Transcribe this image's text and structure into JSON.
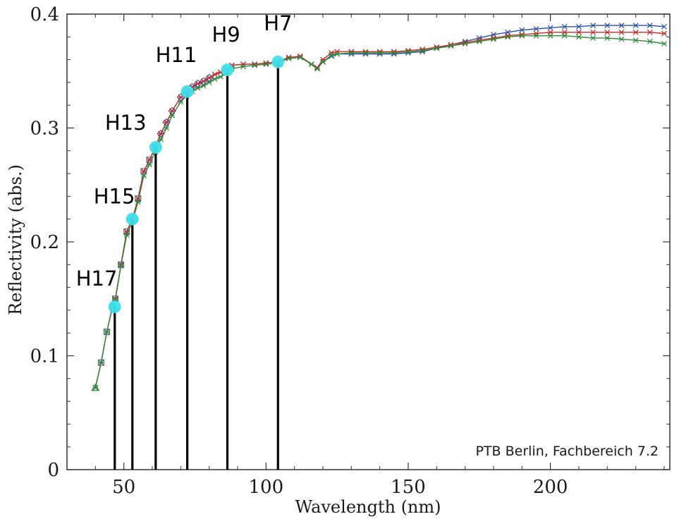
{
  "chart_data": {
    "type": "line",
    "xlabel": "Wavelength (nm)",
    "ylabel": "Reflectivity (abs.)",
    "xlim": [
      30,
      242
    ],
    "ylim": [
      0,
      0.4
    ],
    "x_ticks": [
      50,
      100,
      150,
      200
    ],
    "y_ticks": [
      0,
      0.1,
      0.2,
      0.3,
      0.4
    ],
    "y_tick_labels": [
      "0",
      "0.1",
      "0.2",
      "0.3",
      "0.4"
    ],
    "grid": false,
    "annotation": "PTB Berlin, Fachbereich 7.2",
    "series": [
      {
        "color": "#2a4fb0",
        "marker": "x",
        "points": [
          [
            40,
            0.072
          ],
          [
            42,
            0.094
          ],
          [
            44,
            0.121
          ],
          [
            46,
            0.143
          ],
          [
            47,
            0.15
          ],
          [
            49,
            0.18
          ],
          [
            51,
            0.209
          ],
          [
            53,
            0.22
          ],
          [
            55,
            0.238
          ],
          [
            57,
            0.262
          ],
          [
            59,
            0.272
          ],
          [
            61,
            0.283
          ],
          [
            63,
            0.295
          ],
          [
            65,
            0.305
          ],
          [
            67,
            0.315
          ],
          [
            70,
            0.327
          ],
          [
            72,
            0.332
          ],
          [
            74,
            0.336
          ],
          [
            76,
            0.339
          ],
          [
            78,
            0.341
          ],
          [
            80,
            0.344
          ],
          [
            82,
            0.347
          ],
          [
            84,
            0.349
          ],
          [
            86,
            0.351
          ],
          [
            88,
            0.355
          ],
          [
            92,
            0.356
          ],
          [
            96,
            0.356
          ],
          [
            100,
            0.357
          ],
          [
            104,
            0.358
          ],
          [
            108,
            0.362
          ],
          [
            112,
            0.363
          ],
          [
            116,
            0.356
          ],
          [
            118,
            0.353
          ],
          [
            120,
            0.358
          ],
          [
            123,
            0.363
          ],
          [
            125,
            0.365
          ],
          [
            130,
            0.365
          ],
          [
            135,
            0.365
          ],
          [
            140,
            0.365
          ],
          [
            145,
            0.365
          ],
          [
            150,
            0.366
          ],
          [
            155,
            0.367
          ],
          [
            160,
            0.37
          ],
          [
            165,
            0.373
          ],
          [
            170,
            0.376
          ],
          [
            175,
            0.379
          ],
          [
            180,
            0.382
          ],
          [
            185,
            0.384
          ],
          [
            190,
            0.386
          ],
          [
            195,
            0.387
          ],
          [
            200,
            0.388
          ],
          [
            205,
            0.389
          ],
          [
            210,
            0.389
          ],
          [
            215,
            0.39
          ],
          [
            220,
            0.39
          ],
          [
            225,
            0.39
          ],
          [
            230,
            0.39
          ],
          [
            235,
            0.39
          ],
          [
            240,
            0.389
          ]
        ]
      },
      {
        "color": "#cc2a2a",
        "marker": "star",
        "points": [
          [
            40,
            0.072
          ],
          [
            42,
            0.094
          ],
          [
            44,
            0.121
          ],
          [
            46,
            0.143
          ],
          [
            47,
            0.15
          ],
          [
            49,
            0.18
          ],
          [
            51,
            0.209
          ],
          [
            53,
            0.22
          ],
          [
            55,
            0.238
          ],
          [
            57,
            0.262
          ],
          [
            59,
            0.272
          ],
          [
            61,
            0.283
          ],
          [
            63,
            0.295
          ],
          [
            65,
            0.305
          ],
          [
            67,
            0.315
          ],
          [
            70,
            0.327
          ],
          [
            72,
            0.332
          ],
          [
            74,
            0.336
          ],
          [
            76,
            0.339
          ],
          [
            78,
            0.341
          ],
          [
            80,
            0.344
          ],
          [
            82,
            0.347
          ],
          [
            84,
            0.349
          ],
          [
            86,
            0.351
          ],
          [
            88,
            0.355
          ],
          [
            92,
            0.356
          ],
          [
            96,
            0.356
          ],
          [
            100,
            0.357
          ],
          [
            104,
            0.358
          ],
          [
            108,
            0.362
          ],
          [
            112,
            0.363
          ],
          [
            116,
            0.356
          ],
          [
            118,
            0.353
          ],
          [
            120,
            0.36
          ],
          [
            123,
            0.366
          ],
          [
            125,
            0.367
          ],
          [
            130,
            0.367
          ],
          [
            135,
            0.367
          ],
          [
            140,
            0.367
          ],
          [
            145,
            0.367
          ],
          [
            150,
            0.368
          ],
          [
            155,
            0.369
          ],
          [
            160,
            0.371
          ],
          [
            165,
            0.373
          ],
          [
            170,
            0.375
          ],
          [
            175,
            0.377
          ],
          [
            180,
            0.379
          ],
          [
            185,
            0.381
          ],
          [
            190,
            0.382
          ],
          [
            195,
            0.383
          ],
          [
            200,
            0.384
          ],
          [
            205,
            0.384
          ],
          [
            210,
            0.384
          ],
          [
            215,
            0.384
          ],
          [
            220,
            0.384
          ],
          [
            225,
            0.384
          ],
          [
            230,
            0.384
          ],
          [
            235,
            0.384
          ],
          [
            240,
            0.383
          ]
        ]
      },
      {
        "color": "#2f8a3a",
        "marker": "asterisk",
        "points": [
          [
            40,
            0.072
          ],
          [
            42,
            0.094
          ],
          [
            44,
            0.121
          ],
          [
            46,
            0.143
          ],
          [
            47,
            0.149
          ],
          [
            49,
            0.179
          ],
          [
            51,
            0.206
          ],
          [
            53,
            0.218
          ],
          [
            55,
            0.235
          ],
          [
            57,
            0.258
          ],
          [
            59,
            0.268
          ],
          [
            61,
            0.279
          ],
          [
            63,
            0.29
          ],
          [
            65,
            0.3
          ],
          [
            67,
            0.311
          ],
          [
            70,
            0.323
          ],
          [
            72,
            0.328
          ],
          [
            74,
            0.332
          ],
          [
            76,
            0.335
          ],
          [
            78,
            0.337
          ],
          [
            80,
            0.34
          ],
          [
            82,
            0.343
          ],
          [
            84,
            0.345
          ],
          [
            86,
            0.348
          ],
          [
            88,
            0.352
          ],
          [
            92,
            0.354
          ],
          [
            96,
            0.355
          ],
          [
            100,
            0.356
          ],
          [
            104,
            0.357
          ],
          [
            108,
            0.361
          ],
          [
            112,
            0.362
          ],
          [
            116,
            0.356
          ],
          [
            118,
            0.352
          ],
          [
            120,
            0.358
          ],
          [
            123,
            0.364
          ],
          [
            125,
            0.365
          ],
          [
            130,
            0.366
          ],
          [
            135,
            0.366
          ],
          [
            140,
            0.366
          ],
          [
            145,
            0.366
          ],
          [
            150,
            0.367
          ],
          [
            155,
            0.368
          ],
          [
            160,
            0.37
          ],
          [
            165,
            0.372
          ],
          [
            170,
            0.374
          ],
          [
            175,
            0.376
          ],
          [
            180,
            0.378
          ],
          [
            185,
            0.38
          ],
          [
            190,
            0.381
          ],
          [
            195,
            0.381
          ],
          [
            200,
            0.381
          ],
          [
            205,
            0.381
          ],
          [
            210,
            0.38
          ],
          [
            215,
            0.379
          ],
          [
            220,
            0.379
          ],
          [
            225,
            0.378
          ],
          [
            230,
            0.377
          ],
          [
            235,
            0.376
          ],
          [
            240,
            0.374
          ]
        ]
      }
    ],
    "harmonics": [
      {
        "label": "H17",
        "wavelength": 46.8,
        "reflectivity": 0.143
      },
      {
        "label": "H15",
        "wavelength": 53.0,
        "reflectivity": 0.22
      },
      {
        "label": "H13",
        "wavelength": 61.2,
        "reflectivity": 0.283
      },
      {
        "label": "H11",
        "wavelength": 72.3,
        "reflectivity": 0.332
      },
      {
        "label": "H9",
        "wavelength": 86.4,
        "reflectivity": 0.351
      },
      {
        "label": "H7",
        "wavelength": 104.2,
        "reflectivity": 0.358
      }
    ],
    "harmonic_marker_color": "#3fe0ea"
  }
}
